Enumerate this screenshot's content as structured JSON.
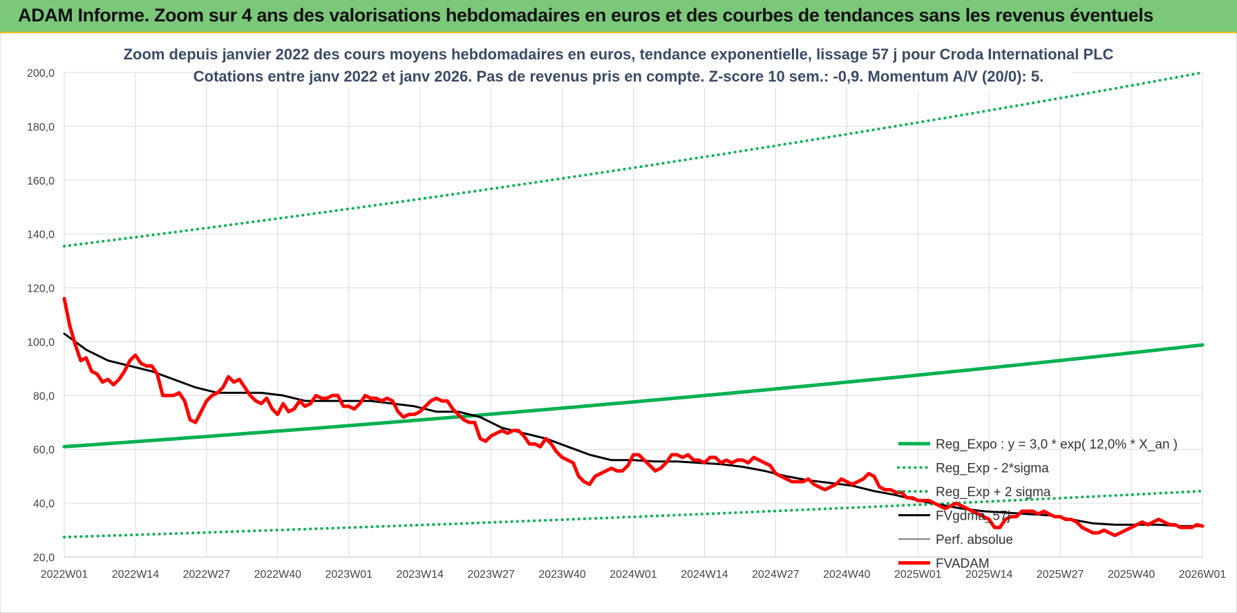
{
  "banner": {
    "title": "ADAM Informe. Zoom sur 4 ans des valorisations hebdomadaires en euros et des courbes de tendances sans les revenus éventuels",
    "background": "#7bc87b"
  },
  "chart_data": {
    "type": "line",
    "title_lines": [
      "Zoom depuis janvier 2022 des cours moyens hebdomadaires en euros, tendance exponentielle, lissage 57 j pour Croda International PLC",
      "Cotations entre janv 2022 et janv 2026. Pas de revenus pris en compte. Z-score 10 sem.: -0,9. Momentum A/V (20/0): 5."
    ],
    "ylim": [
      20,
      200
    ],
    "yticks": [
      20,
      40,
      60,
      80,
      100,
      120,
      140,
      160,
      180,
      200
    ],
    "ytick_labels": [
      "20,0",
      "40,0",
      "60,0",
      "80,0",
      "100,0",
      "120,0",
      "140,0",
      "160,0",
      "180,0",
      "200,0"
    ],
    "x_tick_labels": [
      "2022W01",
      "2022W14",
      "2022W27",
      "2022W40",
      "2023W01",
      "2023W14",
      "2023W27",
      "2023W40",
      "2024W01",
      "2024W14",
      "2024W27",
      "2024W40",
      "2025W01",
      "2025W14",
      "2025W27",
      "2025W40",
      "2026W01"
    ],
    "x_tick_weeks": [
      0,
      13,
      26,
      39,
      52,
      65,
      78,
      91,
      104,
      117,
      130,
      143,
      156,
      169,
      182,
      195,
      208
    ],
    "grid": true,
    "legend_position": "bottom-right",
    "series": [
      {
        "name": "Reg_Expo : y = 3,0 * exp( 12,0% *  X_an )",
        "color": "#00b050",
        "style": "solid",
        "width": 5,
        "curve": "exponential",
        "start": 61.0,
        "end": 98.8,
        "weeks": [
          0,
          208
        ]
      },
      {
        "name": "Reg_Exp - 2*sigma",
        "color": "#00b050",
        "style": "dotted",
        "width": 4,
        "curve": "exponential",
        "start": 27.4,
        "end": 44.5,
        "weeks": [
          0,
          208
        ]
      },
      {
        "name": "Reg_Exp + 2 sigma",
        "color": "#00b050",
        "style": "dotted",
        "width": 4,
        "curve": "exponential",
        "start": 135.5,
        "end": 200.0,
        "weeks": [
          0,
          208
        ],
        "cap": 200.0
      },
      {
        "name": "FVgdma_57j",
        "color": "#000000",
        "style": "solid",
        "width": 3,
        "x": [
          0,
          4,
          8,
          12,
          16,
          20,
          24,
          28,
          32,
          36,
          40,
          44,
          48,
          52,
          56,
          60,
          64,
          68,
          72,
          76,
          80,
          84,
          88,
          92,
          96,
          100,
          104,
          108,
          112,
          116,
          120,
          124,
          128,
          132,
          136,
          140,
          144,
          148,
          152,
          156,
          160,
          164,
          168,
          172,
          176,
          180,
          184,
          188,
          192,
          196,
          200,
          204,
          208
        ],
        "values": [
          103,
          97,
          93,
          91,
          89,
          86,
          83,
          81,
          81,
          81,
          80,
          78,
          78,
          78,
          78,
          77,
          76,
          74,
          74,
          72,
          68,
          66,
          64,
          61,
          58,
          56,
          56,
          55.5,
          55.5,
          55,
          54.5,
          53.5,
          52,
          50,
          48.5,
          47.5,
          46.5,
          44.5,
          43,
          41,
          39.5,
          38,
          37,
          36.5,
          36,
          35.5,
          34,
          32.5,
          32,
          32,
          32,
          31.5,
          31.5
        ]
      },
      {
        "name": "Perf. absolue",
        "color": "#7f7f7f",
        "style": "solid",
        "width": 2,
        "x": [],
        "values": []
      },
      {
        "name": "FVADAM",
        "color": "#ff0000",
        "style": "solid",
        "width": 5,
        "x": [
          0,
          1,
          2,
          3,
          4,
          5,
          6,
          7,
          8,
          9,
          10,
          11,
          12,
          13,
          14,
          15,
          16,
          17,
          18,
          19,
          20,
          21,
          22,
          23,
          24,
          25,
          26,
          27,
          28,
          29,
          30,
          31,
          32,
          33,
          34,
          35,
          36,
          37,
          38,
          39,
          40,
          41,
          42,
          43,
          44,
          45,
          46,
          47,
          48,
          49,
          50,
          51,
          52,
          53,
          54,
          55,
          56,
          57,
          58,
          59,
          60,
          61,
          62,
          63,
          64,
          65,
          66,
          67,
          68,
          69,
          70,
          71,
          72,
          73,
          74,
          75,
          76,
          77,
          78,
          79,
          80,
          81,
          82,
          83,
          84,
          85,
          86,
          87,
          88,
          89,
          90,
          91,
          92,
          93,
          94,
          95,
          96,
          97,
          98,
          99,
          100,
          101,
          102,
          103,
          104,
          105,
          106,
          107,
          108,
          109,
          110,
          111,
          112,
          113,
          114,
          115,
          116,
          117,
          118,
          119,
          120,
          121,
          122,
          123,
          124,
          125,
          126,
          127,
          128,
          129,
          130,
          131,
          132,
          133,
          134,
          135,
          136,
          137,
          138,
          139,
          140,
          141,
          142,
          143,
          144,
          145,
          146,
          147,
          148,
          149,
          150,
          151,
          152,
          153,
          154,
          155,
          156,
          157,
          158,
          159,
          160,
          161,
          162,
          163,
          164,
          165,
          166,
          167,
          168,
          169,
          170,
          171,
          172,
          173,
          174,
          175,
          176,
          177,
          178,
          179,
          180,
          181,
          182,
          183,
          184,
          185,
          186,
          187,
          188,
          189,
          190,
          191,
          192,
          193,
          194,
          195,
          196,
          197,
          198,
          199,
          200,
          201,
          202,
          203,
          204,
          205,
          206,
          207,
          208
        ],
        "values": [
          116,
          106,
          99,
          93,
          94,
          89,
          88,
          85,
          86,
          84,
          86,
          89,
          93,
          95,
          92,
          91,
          91,
          88,
          80,
          80,
          80,
          81,
          78,
          71,
          70,
          74,
          78,
          80,
          81,
          83,
          87,
          85,
          86,
          83,
          80,
          78,
          77,
          79,
          75,
          73,
          77,
          74,
          75,
          78,
          76,
          77,
          80,
          79,
          79,
          80,
          80,
          76,
          76,
          75,
          77,
          80,
          79,
          79,
          78,
          79,
          78,
          74,
          72,
          73,
          73,
          74,
          76,
          78,
          79,
          78,
          78,
          75,
          73,
          71,
          70,
          70,
          64,
          63,
          65,
          66,
          67,
          66,
          67,
          67,
          65,
          62,
          62,
          61,
          64,
          62,
          59,
          57,
          56,
          55,
          50,
          48,
          47,
          50,
          51,
          52,
          53,
          52,
          52,
          54,
          58,
          58,
          56,
          54,
          52,
          53,
          55,
          58,
          58,
          57,
          58,
          56,
          56,
          55,
          57,
          57,
          55,
          56,
          55,
          56,
          56,
          55,
          57,
          56,
          55,
          54,
          51,
          50,
          49,
          48,
          48,
          48,
          49,
          47,
          46,
          45,
          46,
          47,
          49,
          48,
          47,
          48,
          49,
          51,
          50,
          46,
          45,
          45,
          44,
          44,
          42,
          42,
          41,
          41,
          41,
          40,
          39,
          38,
          39,
          40,
          39,
          38,
          37,
          36,
          35,
          34,
          31,
          31,
          34,
          35,
          35,
          37,
          37,
          37,
          36,
          37,
          36,
          35,
          35,
          34,
          34,
          33,
          31,
          30,
          29,
          29,
          30,
          29,
          28,
          29,
          30,
          31,
          32,
          33,
          32,
          33,
          34,
          33,
          32,
          32,
          31,
          31,
          31,
          32,
          31.5
        ]
      }
    ]
  }
}
